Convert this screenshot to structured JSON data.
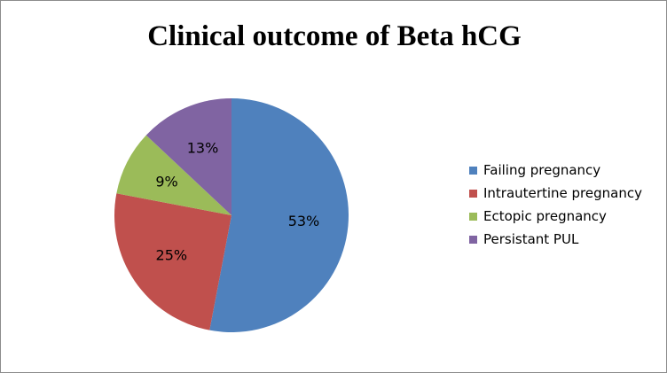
{
  "chart_data": {
    "type": "pie",
    "title": "Clinical outcome of Beta hCG",
    "categories": [
      "Failing pregnancy",
      "Intrautertine pregnancy",
      "Ectopic pregnancy",
      "Persistant PUL"
    ],
    "values": [
      53,
      25,
      9,
      13
    ],
    "value_labels": [
      "53%",
      "25%",
      "9%",
      "13%"
    ],
    "colors": [
      "#4f81bd",
      "#c0504d",
      "#9bbb59",
      "#8064a2"
    ],
    "start_angle_deg": 0,
    "direction": "clockwise",
    "legend": "right"
  }
}
